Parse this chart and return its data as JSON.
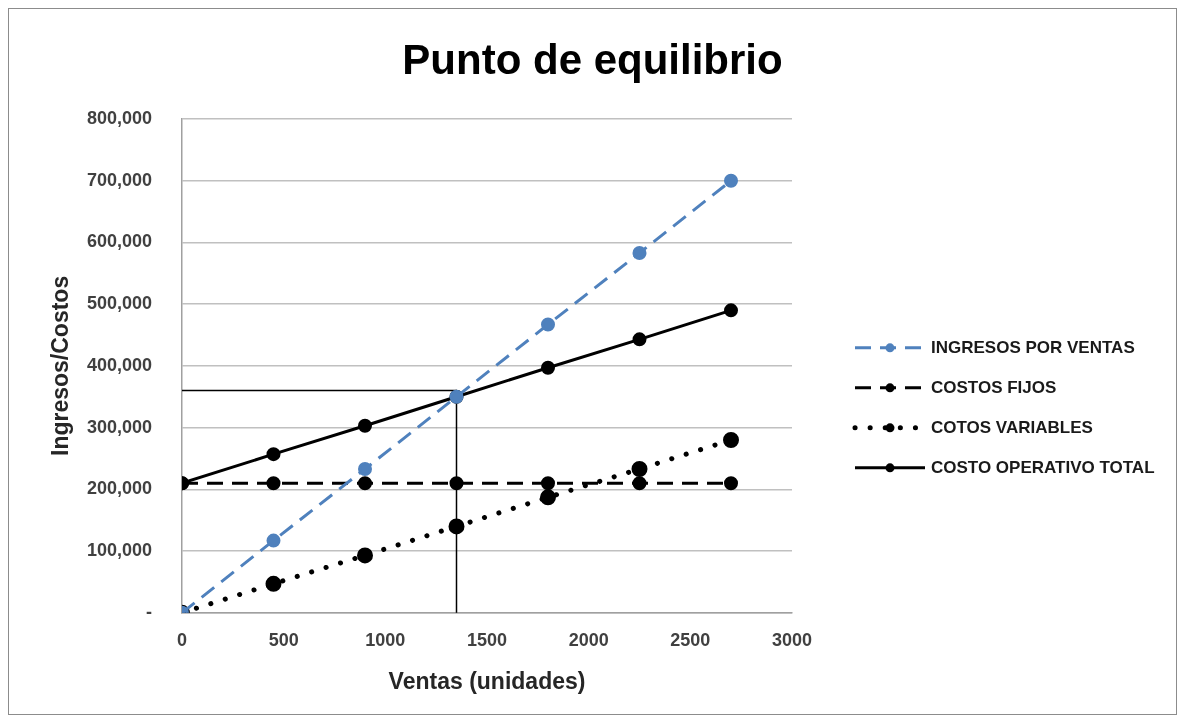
{
  "chart_data": {
    "type": "line",
    "title": "Punto de equilibrio",
    "xlabel": "Ventas (unidades)",
    "ylabel": "Ingresos/Costos",
    "x": [
      0,
      450,
      900,
      1350,
      1800,
      2250,
      2700
    ],
    "series": [
      {
        "name": "INGRESOS POR VENTAS",
        "color": "#4f81bd",
        "line_style": "dashed",
        "values": [
          0,
          117000,
          233000,
          350000,
          467000,
          583000,
          700000
        ]
      },
      {
        "name": "COSTOS FIJOS",
        "color": "#000000",
        "line_style": "dashed",
        "values": [
          210000,
          210000,
          210000,
          210000,
          210000,
          210000,
          210000
        ]
      },
      {
        "name": "COTOS VARIABLES",
        "color": "#000000",
        "line_style": "dotted",
        "values": [
          0,
          47000,
          93000,
          140000,
          187000,
          233000,
          280000
        ]
      },
      {
        "name": "COSTO OPERATIVO TOTAL",
        "color": "#000000",
        "line_style": "solid",
        "values": [
          210000,
          257000,
          303000,
          350000,
          397000,
          443000,
          490000
        ]
      }
    ],
    "ref_lines": [
      {
        "axis": "y",
        "value": 360000,
        "color": "#000000"
      },
      {
        "axis": "x",
        "value": 1350,
        "color": "#000000"
      }
    ],
    "xlim": [
      0,
      3000
    ],
    "xticks": [
      0,
      500,
      1000,
      1500,
      2000,
      2500,
      3000
    ],
    "ylim": [
      0,
      800000
    ],
    "yticks": [
      {
        "value": 0,
        "label": "-"
      },
      {
        "value": 100000,
        "label": "100,000"
      },
      {
        "value": 200000,
        "label": "200,000"
      },
      {
        "value": 300000,
        "label": "300,000"
      },
      {
        "value": 400000,
        "label": "400,000"
      },
      {
        "value": 500000,
        "label": "500,000"
      },
      {
        "value": 600000,
        "label": "600,000"
      },
      {
        "value": 700000,
        "label": "700,000"
      },
      {
        "value": 800000,
        "label": "800,000"
      }
    ],
    "grid": "y",
    "legend": "right",
    "marker": "circle"
  }
}
